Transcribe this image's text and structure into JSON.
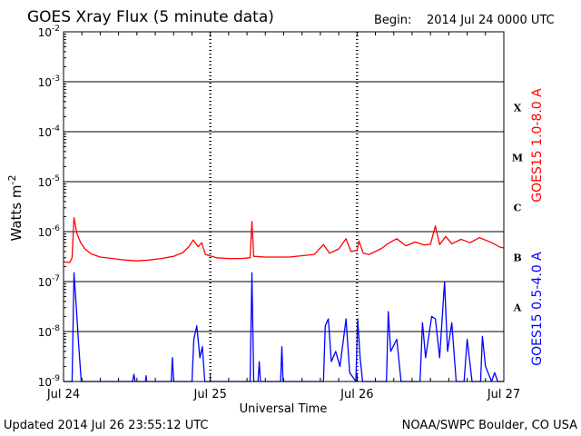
{
  "header": {
    "title": "GOES Xray Flux (5 minute data)",
    "begin_label": "Begin:",
    "begin_value": "2014 Jul 24 0000 UTC"
  },
  "footer": {
    "updated": "Updated 2014 Jul 26 23:55:12 UTC",
    "credit": "NOAA/SWPC Boulder, CO USA"
  },
  "chart_data": {
    "type": "line",
    "title": "GOES Xray Flux (5 minute data)",
    "xlabel": "Universal Time",
    "ylabel": "Watts m",
    "ylabel_sup": "-2",
    "y_scale": "log",
    "ylim": [
      1e-09,
      0.01
    ],
    "xlim_hours": [
      0,
      72
    ],
    "x_ticks": [
      {
        "hour": 0,
        "label": "Jul 24"
      },
      {
        "hour": 24,
        "label": "Jul 25"
      },
      {
        "hour": 48,
        "label": "Jul 26"
      },
      {
        "hour": 72,
        "label": "Jul 27"
      }
    ],
    "y_ticks": [
      {
        "exp": -9,
        "label": "10",
        "sup": "-9"
      },
      {
        "exp": -8,
        "label": "10",
        "sup": "-8"
      },
      {
        "exp": -7,
        "label": "10",
        "sup": "-7"
      },
      {
        "exp": -6,
        "label": "10",
        "sup": "-6"
      },
      {
        "exp": -5,
        "label": "10",
        "sup": "-5"
      },
      {
        "exp": -4,
        "label": "10",
        "sup": "-4"
      },
      {
        "exp": -3,
        "label": "10",
        "sup": "-3"
      },
      {
        "exp": -2,
        "label": "10",
        "sup": "-2"
      }
    ],
    "grid": "horizontal at each decade, dotted vertical at day boundaries",
    "flare_classes": [
      {
        "label": "X",
        "exp": -4
      },
      {
        "label": "M",
        "exp": -5
      },
      {
        "label": "C",
        "exp": -6
      },
      {
        "label": "B",
        "exp": -7
      },
      {
        "label": "A",
        "exp": -8
      }
    ],
    "series": [
      {
        "name": "GOES15 1.0-8.0 A",
        "color": "#ff0000",
        "points": [
          [
            0,
            2.5e-07
          ],
          [
            1,
            2.4e-07
          ],
          [
            1.4,
            3e-07
          ],
          [
            1.7,
            1.9e-06
          ],
          [
            2.2,
            9e-07
          ],
          [
            2.8,
            6e-07
          ],
          [
            3.5,
            4.5e-07
          ],
          [
            4.5,
            3.6e-07
          ],
          [
            6,
            3.1e-07
          ],
          [
            8,
            2.9e-07
          ],
          [
            10,
            2.7e-07
          ],
          [
            12,
            2.6e-07
          ],
          [
            14,
            2.7e-07
          ],
          [
            16,
            2.9e-07
          ],
          [
            18,
            3.2e-07
          ],
          [
            19.5,
            3.8e-07
          ],
          [
            20.5,
            5e-07
          ],
          [
            21.2,
            6.8e-07
          ],
          [
            22,
            5e-07
          ],
          [
            22.6,
            6e-07
          ],
          [
            23.2,
            3.5e-07
          ],
          [
            25,
            3e-07
          ],
          [
            27,
            2.9e-07
          ],
          [
            29,
            2.9e-07
          ],
          [
            30.5,
            3e-07
          ],
          [
            30.8,
            1.6e-06
          ],
          [
            31.1,
            3.2e-07
          ],
          [
            33,
            3.1e-07
          ],
          [
            35,
            3.1e-07
          ],
          [
            37,
            3.1e-07
          ],
          [
            39,
            3.3e-07
          ],
          [
            41,
            3.5e-07
          ],
          [
            42.5,
            5.5e-07
          ],
          [
            43.5,
            3.7e-07
          ],
          [
            45,
            4.5e-07
          ],
          [
            46.2,
            7.2e-07
          ],
          [
            47,
            4e-07
          ],
          [
            48,
            4.2e-07
          ],
          [
            48.3,
            6.5e-07
          ],
          [
            49,
            3.7e-07
          ],
          [
            50,
            3.5e-07
          ],
          [
            52,
            4.6e-07
          ],
          [
            53,
            5.7e-07
          ],
          [
            54.5,
            7.2e-07
          ],
          [
            56,
            5.2e-07
          ],
          [
            57.5,
            6.2e-07
          ],
          [
            59,
            5.4e-07
          ],
          [
            60,
            5.6e-07
          ],
          [
            60.8,
            1.3e-06
          ],
          [
            61.5,
            5.5e-07
          ],
          [
            62.5,
            8e-07
          ],
          [
            63.5,
            5.7e-07
          ],
          [
            65,
            7e-07
          ],
          [
            66.5,
            6e-07
          ],
          [
            68,
            7.6e-07
          ],
          [
            69.5,
            6.4e-07
          ],
          [
            70.5,
            5.6e-07
          ],
          [
            71.3,
            4.9e-07
          ],
          [
            72,
            4.7e-07
          ]
        ]
      },
      {
        "name": "GOES15 0.5-4.0 A",
        "color": "#0000ff",
        "points": [
          [
            0,
            1e-09
          ],
          [
            1.4,
            1e-09
          ],
          [
            1.7,
            1.5e-07
          ],
          [
            2.1,
            3e-08
          ],
          [
            2.5,
            5e-09
          ],
          [
            2.9,
            1e-09
          ],
          [
            11.3,
            1e-09
          ],
          [
            11.5,
            1.4e-09
          ],
          [
            11.7,
            1e-09
          ],
          [
            13.4,
            1e-09
          ],
          [
            13.5,
            1.3e-09
          ],
          [
            13.6,
            1e-09
          ],
          [
            17.6,
            1e-09
          ],
          [
            17.8,
            3e-09
          ],
          [
            18,
            1e-09
          ],
          [
            21,
            1e-09
          ],
          [
            21.3,
            7e-09
          ],
          [
            21.8,
            1.3e-08
          ],
          [
            22.3,
            3e-09
          ],
          [
            22.7,
            5e-09
          ],
          [
            23.1,
            1e-09
          ],
          [
            30.5,
            1e-09
          ],
          [
            30.8,
            1.5e-07
          ],
          [
            31.1,
            1e-09
          ],
          [
            31.8,
            1e-09
          ],
          [
            32,
            2.5e-09
          ],
          [
            32.2,
            1e-09
          ],
          [
            35.5,
            1e-09
          ],
          [
            35.7,
            5e-09
          ],
          [
            35.9,
            1e-09
          ],
          [
            42.5,
            1e-09
          ],
          [
            42.8,
            1.3e-08
          ],
          [
            43.3,
            1.8e-08
          ],
          [
            43.8,
            2.5e-09
          ],
          [
            44.5,
            4e-09
          ],
          [
            45.2,
            2e-09
          ],
          [
            46.2,
            1.8e-08
          ],
          [
            46.8,
            1.5e-09
          ],
          [
            47.8,
            1e-09
          ],
          [
            48.1,
            1.8e-08
          ],
          [
            48.5,
            3e-09
          ],
          [
            48.9,
            1e-09
          ],
          [
            52.8,
            1e-09
          ],
          [
            53.1,
            2.5e-08
          ],
          [
            53.5,
            4e-09
          ],
          [
            54.5,
            7e-09
          ],
          [
            55.2,
            1e-09
          ],
          [
            58.3,
            1e-09
          ],
          [
            58.7,
            1.5e-08
          ],
          [
            59.2,
            3e-09
          ],
          [
            60.2,
            2e-08
          ],
          [
            60.8,
            1.8e-08
          ],
          [
            61.5,
            3e-09
          ],
          [
            62.3,
            1e-07
          ],
          [
            62.8,
            4e-09
          ],
          [
            63.5,
            1.5e-08
          ],
          [
            64.2,
            1e-09
          ],
          [
            65.5,
            1e-09
          ],
          [
            66,
            7e-09
          ],
          [
            66.8,
            1e-09
          ],
          [
            68.2,
            1e-09
          ],
          [
            68.5,
            8e-09
          ],
          [
            69,
            2e-09
          ],
          [
            70,
            1e-09
          ],
          [
            70.5,
            1.5e-09
          ],
          [
            71,
            1e-09
          ],
          [
            72,
            1e-09
          ]
        ]
      }
    ]
  }
}
